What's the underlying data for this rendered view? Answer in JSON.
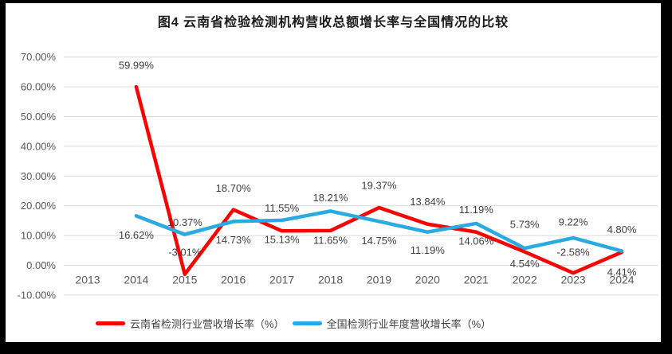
{
  "window": {
    "frame_color": "#000000",
    "surface_color": "#ffffff"
  },
  "title": "图4 云南省检验检测机构营收总额增长率与全国情况的比较",
  "chart_data": {
    "type": "line",
    "categories": [
      "2013",
      "2014",
      "2015",
      "2016",
      "2017",
      "2018",
      "2019",
      "2020",
      "2021",
      "2022",
      "2023",
      "2024"
    ],
    "series": [
      {
        "name": "云南省检测行业营收增长率（%）",
        "color": "#ff0000",
        "values": [
          null,
          59.99,
          -3.01,
          18.7,
          11.55,
          11.65,
          19.37,
          13.84,
          11.19,
          4.54,
          -2.58,
          4.41
        ],
        "labels": [
          "",
          "59.99%",
          "-3.01%",
          "18.70%",
          "11.55%",
          "11.65%",
          "19.37%",
          "13.84%",
          "11.19%",
          "4.54%",
          "-2.58%",
          "4.41%"
        ],
        "label_dy": [
          0,
          -27,
          -28,
          -27,
          -29,
          12,
          -28,
          -28,
          -28,
          15,
          -26,
          25
        ]
      },
      {
        "name": "全国检测行业年度营收增长率（%）",
        "color": "#29abe2",
        "values": [
          null,
          16.62,
          10.37,
          14.73,
          15.13,
          18.21,
          14.75,
          11.19,
          14.06,
          5.73,
          9.22,
          4.8
        ],
        "labels": [
          "",
          "16.62%",
          "10.37%",
          "14.73%",
          "15.13%",
          "18.21%",
          "14.75%",
          "11.19%",
          "14.06%",
          "5.73%",
          "9.22%",
          "4.80%"
        ],
        "label_dy": [
          0,
          24,
          -15,
          23,
          24,
          -17,
          24,
          23,
          22,
          -30,
          -20,
          -27
        ]
      }
    ],
    "ylim": [
      -10,
      70
    ],
    "ytick_step": 10,
    "yticks": [
      "70.00%",
      "60.00%",
      "50.00%",
      "40.00%",
      "30.00%",
      "20.00%",
      "10.00%",
      "0.00%",
      "-10.00%"
    ],
    "grid": true,
    "legend_position": "bottom",
    "colors": {
      "gridline": "#d9d9d9",
      "axis_text": "#595959",
      "data_label_text": "#404040"
    }
  }
}
